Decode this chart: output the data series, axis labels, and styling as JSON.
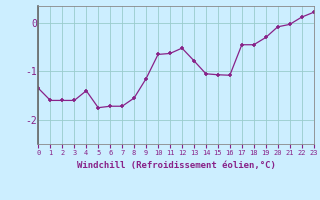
{
  "x": [
    0,
    1,
    2,
    3,
    4,
    5,
    6,
    7,
    8,
    9,
    10,
    11,
    12,
    13,
    14,
    15,
    16,
    17,
    18,
    19,
    20,
    21,
    22,
    23
  ],
  "y": [
    -1.35,
    -1.6,
    -1.6,
    -1.6,
    -1.4,
    -1.75,
    -1.72,
    -1.72,
    -1.55,
    -1.15,
    -0.65,
    -0.63,
    -0.52,
    -0.78,
    -1.05,
    -1.07,
    -1.08,
    -0.45,
    -0.45,
    -0.3,
    -0.08,
    -0.03,
    0.12,
    0.22
  ],
  "line_color": "#882288",
  "marker": "+",
  "marker_size": 3.5,
  "marker_edge_width": 1.2,
  "bg_color": "#cceeff",
  "grid_color": "#99cccc",
  "tick_color": "#882288",
  "label_color": "#882288",
  "xlabel": "Windchill (Refroidissement éolien,°C)",
  "xlim": [
    0,
    23
  ],
  "ylim": [
    -2.5,
    0.35
  ],
  "yticks": [
    0,
    -1,
    -2
  ],
  "ytick_labels": [
    "0",
    "-1",
    "-2"
  ],
  "xticks": [
    0,
    1,
    2,
    3,
    4,
    5,
    6,
    7,
    8,
    9,
    10,
    11,
    12,
    13,
    14,
    15,
    16,
    17,
    18,
    19,
    20,
    21,
    22,
    23
  ],
  "spine_color": "#888888",
  "left_spine_color": "#666666"
}
